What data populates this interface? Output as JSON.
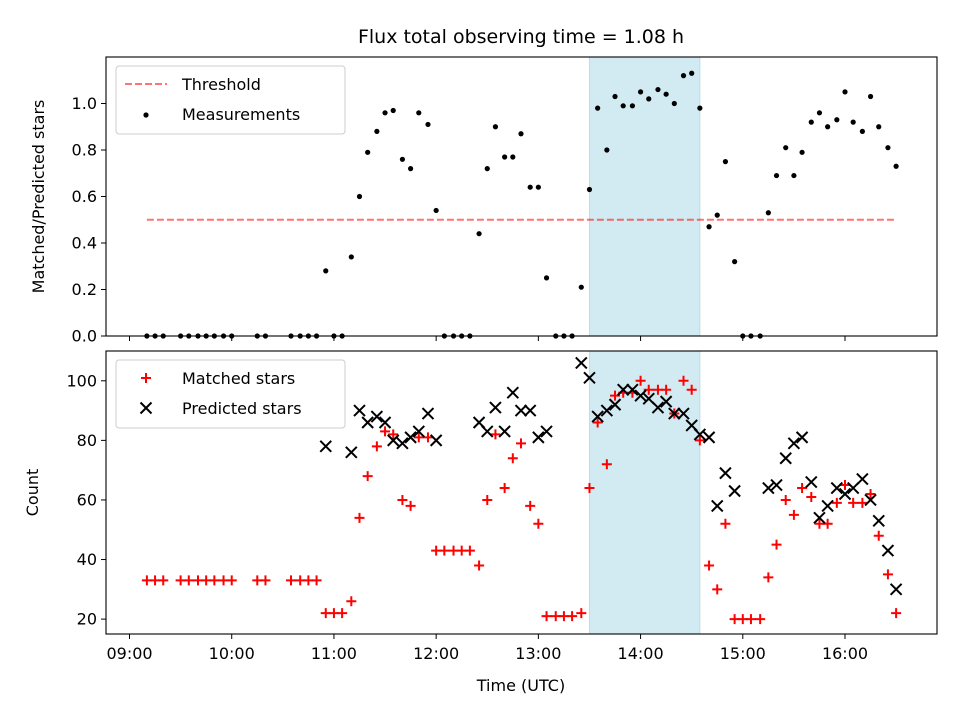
{
  "chart_data": {
    "type": "scatter",
    "title": "Flux total observing time = 1.08 h",
    "xlabel": "Time (UTC)",
    "x_ticks": [
      "09:00",
      "10:00",
      "11:00",
      "12:00",
      "13:00",
      "14:00",
      "15:00",
      "16:00"
    ],
    "x_tick_values": [
      9.0,
      10.0,
      11.0,
      12.0,
      13.0,
      14.0,
      15.0,
      16.0
    ],
    "xlim": [
      8.77,
      16.9
    ],
    "highlight_span": {
      "start": 13.5,
      "end": 14.58,
      "color": "#add8e6"
    },
    "panels": [
      {
        "ylabel": "Matched/Predicted stars",
        "ylim": [
          0,
          1.2
        ],
        "y_ticks": [
          0.0,
          0.2,
          0.4,
          0.6,
          0.8,
          1.0
        ],
        "y_tick_labels": [
          "0.0",
          "0.2",
          "0.4",
          "0.6",
          "0.8",
          "1.0"
        ],
        "legend_placement": "top-left",
        "threshold": {
          "name": "Threshold",
          "value": 0.5,
          "x_range": [
            9.17,
            16.5
          ],
          "color": "#ff0000"
        },
        "series": [
          {
            "name": "Measurements",
            "marker": "dot",
            "color": "#000000",
            "points": [
              [
                9.17,
                0
              ],
              [
                9.25,
                0
              ],
              [
                9.33,
                0
              ],
              [
                9.5,
                0
              ],
              [
                9.58,
                0
              ],
              [
                9.67,
                0
              ],
              [
                9.75,
                0
              ],
              [
                9.83,
                0
              ],
              [
                9.92,
                0
              ],
              [
                10.0,
                0
              ],
              [
                10.25,
                0
              ],
              [
                10.33,
                0
              ],
              [
                10.58,
                0
              ],
              [
                10.67,
                0
              ],
              [
                10.75,
                0
              ],
              [
                10.83,
                0
              ],
              [
                10.92,
                0.28
              ],
              [
                11.0,
                0
              ],
              [
                11.08,
                0
              ],
              [
                11.17,
                0.34
              ],
              [
                11.25,
                0.6
              ],
              [
                11.33,
                0.79
              ],
              [
                11.42,
                0.88
              ],
              [
                11.5,
                0.96
              ],
              [
                11.58,
                0.97
              ],
              [
                11.67,
                0.76
              ],
              [
                11.75,
                0.72
              ],
              [
                11.83,
                0.96
              ],
              [
                11.92,
                0.91
              ],
              [
                12.0,
                0.54
              ],
              [
                12.08,
                0
              ],
              [
                12.17,
                0
              ],
              [
                12.25,
                0
              ],
              [
                12.33,
                0
              ],
              [
                12.42,
                0.44
              ],
              [
                12.5,
                0.72
              ],
              [
                12.58,
                0.9
              ],
              [
                12.67,
                0.77
              ],
              [
                12.75,
                0.77
              ],
              [
                12.83,
                0.87
              ],
              [
                12.92,
                0.64
              ],
              [
                13.0,
                0.64
              ],
              [
                13.08,
                0.25
              ],
              [
                13.17,
                0
              ],
              [
                13.25,
                0
              ],
              [
                13.33,
                0
              ],
              [
                13.42,
                0.21
              ],
              [
                13.5,
                0.63
              ],
              [
                13.58,
                0.98
              ],
              [
                13.67,
                0.8
              ],
              [
                13.75,
                1.03
              ],
              [
                13.83,
                0.99
              ],
              [
                13.92,
                0.99
              ],
              [
                14.0,
                1.05
              ],
              [
                14.08,
                1.02
              ],
              [
                14.17,
                1.06
              ],
              [
                14.25,
                1.04
              ],
              [
                14.33,
                1.0
              ],
              [
                14.42,
                1.12
              ],
              [
                14.5,
                1.13
              ],
              [
                14.58,
                0.98
              ],
              [
                14.67,
                0.47
              ],
              [
                14.75,
                0.52
              ],
              [
                14.83,
                0.75
              ],
              [
                14.92,
                0.32
              ],
              [
                15.0,
                0
              ],
              [
                15.08,
                0
              ],
              [
                15.17,
                0
              ],
              [
                15.25,
                0.53
              ],
              [
                15.33,
                0.69
              ],
              [
                15.42,
                0.81
              ],
              [
                15.5,
                0.69
              ],
              [
                15.58,
                0.79
              ],
              [
                15.67,
                0.92
              ],
              [
                15.75,
                0.96
              ],
              [
                15.83,
                0.9
              ],
              [
                15.92,
                0.93
              ],
              [
                16.0,
                1.05
              ],
              [
                16.08,
                0.92
              ],
              [
                16.17,
                0.88
              ],
              [
                16.25,
                1.03
              ],
              [
                16.33,
                0.9
              ],
              [
                16.42,
                0.81
              ],
              [
                16.5,
                0.73
              ]
            ]
          }
        ]
      },
      {
        "ylabel": "Count",
        "ylim": [
          15,
          110
        ],
        "y_ticks": [
          20,
          40,
          60,
          80,
          100
        ],
        "y_tick_labels": [
          "20",
          "40",
          "60",
          "80",
          "100"
        ],
        "legend_placement": "top-left",
        "series": [
          {
            "name": "Matched stars",
            "marker": "plus",
            "color": "#ff0000",
            "points": [
              [
                9.17,
                33
              ],
              [
                9.25,
                33
              ],
              [
                9.33,
                33
              ],
              [
                9.5,
                33
              ],
              [
                9.58,
                33
              ],
              [
                9.67,
                33
              ],
              [
                9.75,
                33
              ],
              [
                9.83,
                33
              ],
              [
                9.92,
                33
              ],
              [
                10.0,
                33
              ],
              [
                10.25,
                33
              ],
              [
                10.33,
                33
              ],
              [
                10.58,
                33
              ],
              [
                10.67,
                33
              ],
              [
                10.75,
                33
              ],
              [
                10.83,
                33
              ],
              [
                10.92,
                22
              ],
              [
                11.0,
                22
              ],
              [
                11.08,
                22
              ],
              [
                11.17,
                26
              ],
              [
                11.25,
                54
              ],
              [
                11.33,
                68
              ],
              [
                11.42,
                78
              ],
              [
                11.5,
                83
              ],
              [
                11.58,
                82
              ],
              [
                11.67,
                60
              ],
              [
                11.75,
                58
              ],
              [
                11.83,
                81
              ],
              [
                11.92,
                81
              ],
              [
                12.0,
                43
              ],
              [
                12.08,
                43
              ],
              [
                12.17,
                43
              ],
              [
                12.25,
                43
              ],
              [
                12.33,
                43
              ],
              [
                12.42,
                38
              ],
              [
                12.5,
                60
              ],
              [
                12.58,
                82
              ],
              [
                12.67,
                64
              ],
              [
                12.75,
                74
              ],
              [
                12.83,
                79
              ],
              [
                12.92,
                58
              ],
              [
                13.0,
                52
              ],
              [
                13.08,
                21
              ],
              [
                13.17,
                21
              ],
              [
                13.25,
                21
              ],
              [
                13.33,
                21
              ],
              [
                13.42,
                22
              ],
              [
                13.5,
                64
              ],
              [
                13.58,
                86
              ],
              [
                13.67,
                72
              ],
              [
                13.75,
                95
              ],
              [
                13.83,
                96
              ],
              [
                13.92,
                96
              ],
              [
                14.0,
                100
              ],
              [
                14.08,
                97
              ],
              [
                14.17,
                97
              ],
              [
                14.25,
                97
              ],
              [
                14.33,
                89
              ],
              [
                14.42,
                100
              ],
              [
                14.5,
                97
              ],
              [
                14.58,
                80
              ],
              [
                14.67,
                38
              ],
              [
                14.75,
                30
              ],
              [
                14.83,
                52
              ],
              [
                14.92,
                20
              ],
              [
                15.0,
                20
              ],
              [
                15.08,
                20
              ],
              [
                15.17,
                20
              ],
              [
                15.25,
                34
              ],
              [
                15.33,
                45
              ],
              [
                15.42,
                60
              ],
              [
                15.5,
                55
              ],
              [
                15.58,
                64
              ],
              [
                15.67,
                61
              ],
              [
                15.75,
                52
              ],
              [
                15.83,
                52
              ],
              [
                15.92,
                59
              ],
              [
                16.0,
                65
              ],
              [
                16.08,
                59
              ],
              [
                16.17,
                59
              ],
              [
                16.25,
                62
              ],
              [
                16.33,
                48
              ],
              [
                16.42,
                35
              ],
              [
                16.5,
                22
              ]
            ]
          },
          {
            "name": "Predicted stars",
            "marker": "x",
            "color": "#000000",
            "points": [
              [
                10.92,
                78
              ],
              [
                11.17,
                76
              ],
              [
                11.25,
                90
              ],
              [
                11.33,
                86
              ],
              [
                11.42,
                88
              ],
              [
                11.5,
                86
              ],
              [
                11.58,
                80
              ],
              [
                11.67,
                79
              ],
              [
                11.75,
                81
              ],
              [
                11.83,
                83
              ],
              [
                11.92,
                89
              ],
              [
                12.0,
                80
              ],
              [
                12.42,
                86
              ],
              [
                12.5,
                83
              ],
              [
                12.58,
                91
              ],
              [
                12.67,
                83
              ],
              [
                12.75,
                96
              ],
              [
                12.83,
                90
              ],
              [
                12.92,
                90
              ],
              [
                13.0,
                81
              ],
              [
                13.08,
                83
              ],
              [
                13.42,
                106
              ],
              [
                13.5,
                101
              ],
              [
                13.58,
                88
              ],
              [
                13.67,
                90
              ],
              [
                13.75,
                92
              ],
              [
                13.83,
                97
              ],
              [
                13.92,
                97
              ],
              [
                14.0,
                95
              ],
              [
                14.08,
                94
              ],
              [
                14.17,
                91
              ],
              [
                14.25,
                93
              ],
              [
                14.33,
                89
              ],
              [
                14.42,
                89
              ],
              [
                14.5,
                85
              ],
              [
                14.58,
                82
              ],
              [
                14.67,
                81
              ],
              [
                14.75,
                58
              ],
              [
                14.83,
                69
              ],
              [
                14.92,
                63
              ],
              [
                15.25,
                64
              ],
              [
                15.33,
                65
              ],
              [
                15.42,
                74
              ],
              [
                15.5,
                79
              ],
              [
                15.58,
                81
              ],
              [
                15.67,
                66
              ],
              [
                15.75,
                54
              ],
              [
                15.83,
                58
              ],
              [
                15.92,
                64
              ],
              [
                16.0,
                62
              ],
              [
                16.08,
                64
              ],
              [
                16.17,
                67
              ],
              [
                16.25,
                60
              ],
              [
                16.33,
                53
              ],
              [
                16.42,
                43
              ],
              [
                16.5,
                30
              ]
            ]
          }
        ]
      }
    ]
  }
}
